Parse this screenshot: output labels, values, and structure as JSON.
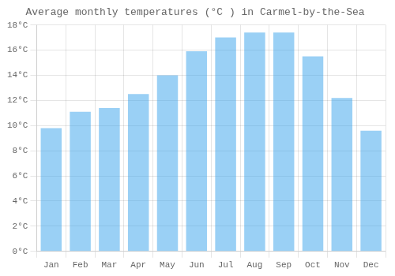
{
  "chart_data": {
    "type": "bar",
    "title": "Average monthly temperatures (°C ) in Carmel-by-the-Sea",
    "categories": [
      "Jan",
      "Feb",
      "Mar",
      "Apr",
      "May",
      "Jun",
      "Jul",
      "Aug",
      "Sep",
      "Oct",
      "Nov",
      "Dec"
    ],
    "values": [
      9.8,
      11.1,
      11.4,
      12.5,
      14.0,
      15.9,
      17.0,
      17.4,
      17.4,
      15.5,
      12.2,
      9.6
    ],
    "ylim": [
      0,
      18
    ],
    "yticks": [
      {
        "value": 0,
        "label": "0°C"
      },
      {
        "value": 2,
        "label": "2°C"
      },
      {
        "value": 4,
        "label": "4°C"
      },
      {
        "value": 6,
        "label": "6°C"
      },
      {
        "value": 8,
        "label": "8°C"
      },
      {
        "value": 10,
        "label": "10°C"
      },
      {
        "value": 12,
        "label": "12°C"
      },
      {
        "value": 14,
        "label": "14°C"
      },
      {
        "value": 16,
        "label": "16°C"
      },
      {
        "value": 18,
        "label": "18°C"
      }
    ],
    "grid": true
  }
}
